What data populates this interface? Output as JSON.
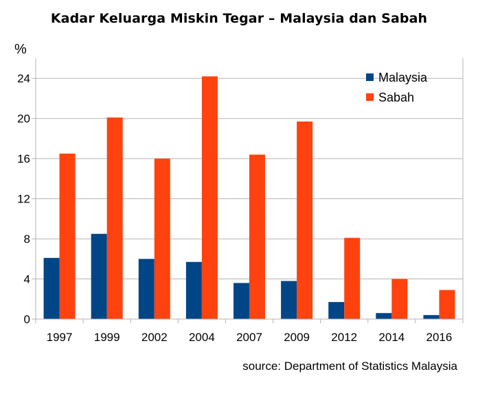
{
  "chart_data": {
    "type": "bar",
    "title": "Kadar Keluarga Miskin Tegar – Malaysia dan Sabah",
    "ylabel": "%",
    "xlabel": "",
    "categories": [
      "1997",
      "1999",
      "2002",
      "2004",
      "2007",
      "2009",
      "2012",
      "2014",
      "2016"
    ],
    "series": [
      {
        "name": "Malaysia",
        "color": "#004586",
        "values": [
          6.1,
          8.5,
          6.0,
          5.7,
          3.6,
          3.8,
          1.7,
          0.6,
          0.4
        ]
      },
      {
        "name": "Sabah",
        "color": "#ff420e",
        "values": [
          16.5,
          20.1,
          16.0,
          24.2,
          16.4,
          19.7,
          8.1,
          4.0,
          2.9
        ]
      }
    ],
    "ylim": [
      0,
      26
    ],
    "yticks": [
      0,
      4,
      8,
      12,
      16,
      20,
      24
    ],
    "grid": true,
    "legend": "top-right"
  },
  "footer": {
    "source": "source: Department of Statistics Malaysia"
  }
}
